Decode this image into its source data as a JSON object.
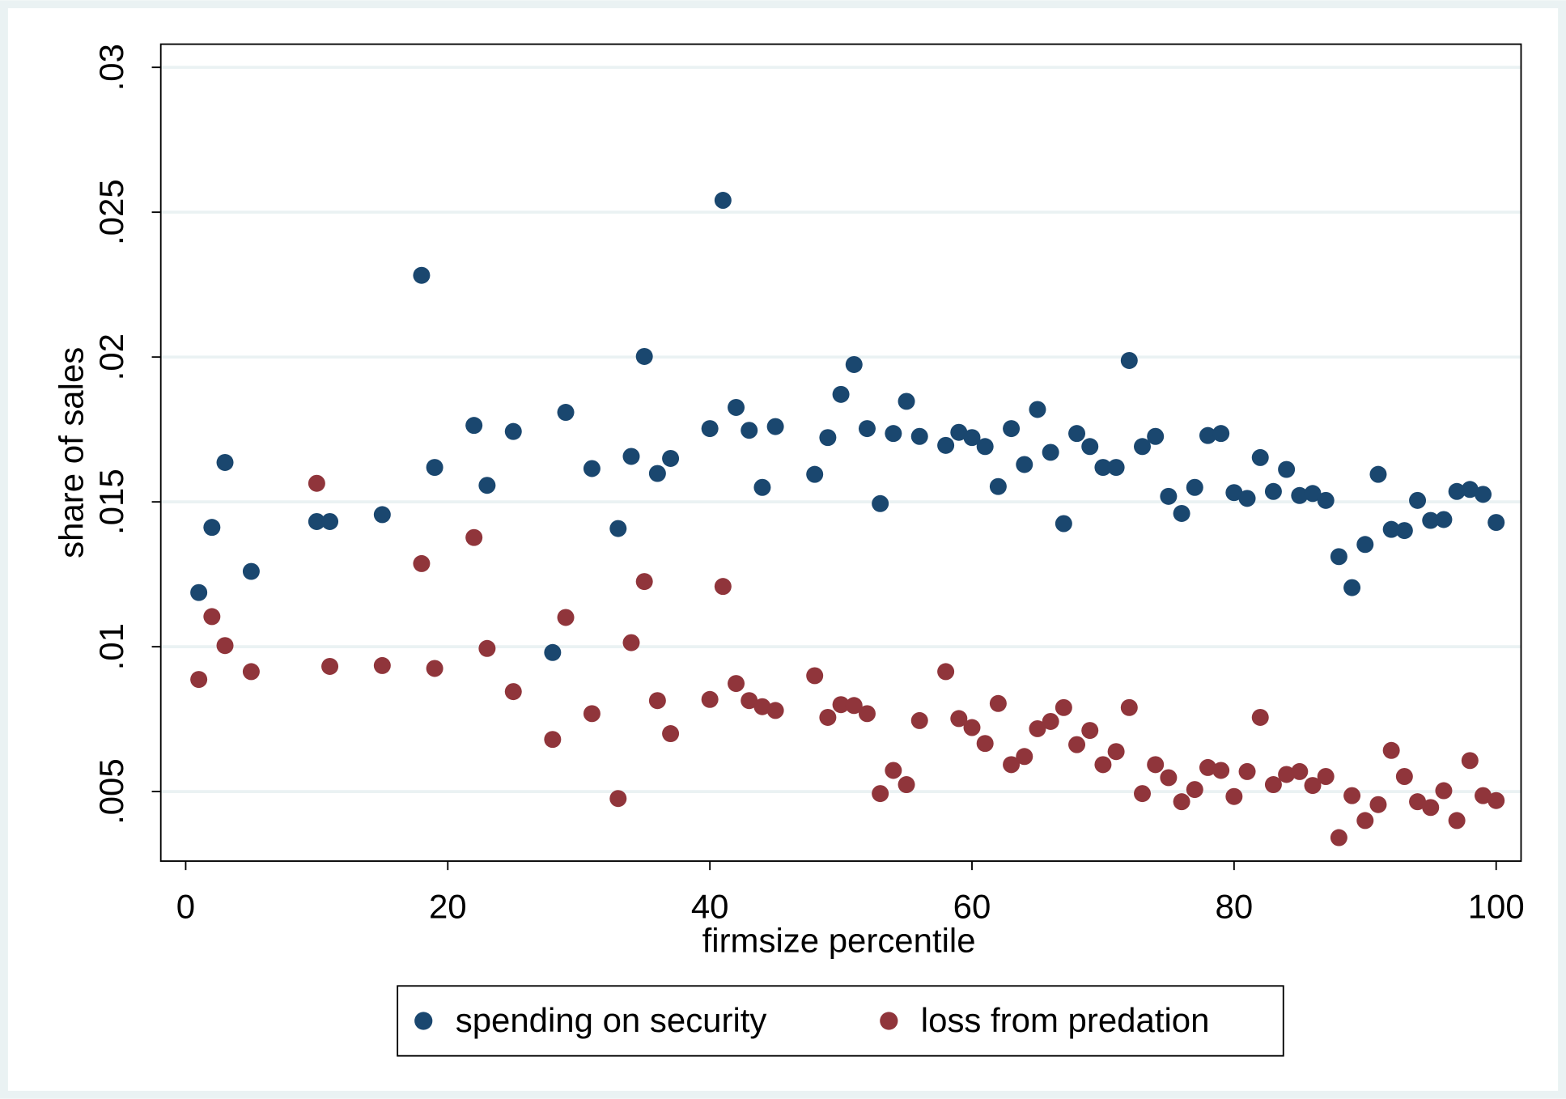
{
  "chart_data": {
    "type": "scatter",
    "x_label": "firmsize percentile",
    "y_label": "share of sales",
    "x": [
      1,
      2,
      3,
      5,
      10,
      11,
      15,
      18,
      19,
      22,
      23,
      25,
      28,
      29,
      31,
      33,
      34,
      35,
      36,
      37,
      40,
      41,
      42,
      43,
      44,
      45,
      48,
      49,
      50,
      51,
      52,
      53,
      54,
      55,
      56,
      58,
      59,
      60,
      61,
      62,
      63,
      64,
      65,
      66,
      67,
      68,
      69,
      70,
      71,
      72,
      73,
      74,
      75,
      76,
      77,
      78,
      79,
      80,
      81,
      82,
      83,
      84,
      85,
      86,
      87,
      88,
      89,
      90,
      91,
      92,
      93,
      94,
      95,
      96,
      97,
      98,
      99,
      100
    ],
    "series": [
      {
        "name": "spending on security",
        "color": "#1a476f",
        "values": [
          0.01187,
          0.01412,
          0.01636,
          0.0126,
          0.01432,
          0.01432,
          0.01456,
          0.02282,
          0.01619,
          0.01764,
          0.01557,
          0.01743,
          0.0098,
          0.01809,
          0.01615,
          0.01408,
          0.01657,
          0.02002,
          0.01598,
          0.0165,
          0.01753,
          0.02541,
          0.01826,
          0.01747,
          0.0155,
          0.0176,
          0.01595,
          0.01722,
          0.01871,
          0.01974,
          0.01753,
          0.01494,
          0.01736,
          0.01847,
          0.01726,
          0.01695,
          0.0174,
          0.01722,
          0.01691,
          0.01553,
          0.01753,
          0.01629,
          0.01819,
          0.01671,
          0.01425,
          0.01736,
          0.01691,
          0.01619,
          0.01619,
          0.01988,
          0.01691,
          0.01726,
          0.01519,
          0.0146,
          0.0155,
          0.01729,
          0.01736,
          0.01532,
          0.01512,
          0.01653,
          0.01536,
          0.01612,
          0.01522,
          0.01529,
          0.01505,
          0.01311,
          0.01204,
          0.01353,
          0.01595,
          0.01405,
          0.01401,
          0.01505,
          0.01436,
          0.01439,
          0.01536,
          0.01543,
          0.01526,
          0.01429
        ]
      },
      {
        "name": "loss from predation",
        "color": "#90353b",
        "values": [
          0.00887,
          0.01104,
          0.01004,
          0.00914,
          0.01564,
          0.00932,
          0.00935,
          0.01287,
          0.00925,
          0.01377,
          0.00994,
          0.00845,
          0.0068,
          0.01101,
          0.00769,
          0.00476,
          0.01014,
          0.01225,
          0.00814,
          0.007,
          0.00818,
          0.01208,
          0.00873,
          0.00814,
          0.00793,
          0.0078,
          0.009,
          0.00756,
          0.008,
          0.00797,
          0.00769,
          0.00493,
          0.00573,
          0.00524,
          0.00745,
          0.00914,
          0.00752,
          0.00721,
          0.00666,
          0.00804,
          0.00593,
          0.00621,
          0.00717,
          0.00742,
          0.0079,
          0.00662,
          0.00711,
          0.00593,
          0.00638,
          0.0079,
          0.00493,
          0.00593,
          0.00548,
          0.00465,
          0.00507,
          0.00583,
          0.00573,
          0.00483,
          0.00569,
          0.00756,
          0.00524,
          0.00559,
          0.00569,
          0.00521,
          0.00552,
          0.00341,
          0.00486,
          0.004,
          0.00455,
          0.00642,
          0.00552,
          0.00465,
          0.00445,
          0.00503,
          0.004,
          0.00607,
          0.00486,
          0.00469
        ]
      }
    ],
    "xlim": [
      -1.9,
      101.9
    ],
    "xticks": [
      0,
      20,
      40,
      60,
      80,
      100
    ],
    "ylim": [
      0.0026,
      0.0308
    ],
    "yticks": [
      {
        "value": 0.005,
        "label": ".005"
      },
      {
        "value": 0.01,
        "label": ".01"
      },
      {
        "value": 0.015,
        "label": ".015"
      },
      {
        "value": 0.02,
        "label": ".02"
      },
      {
        "value": 0.025,
        "label": ".025"
      },
      {
        "value": 0.03,
        "label": ".03"
      }
    ],
    "grid": true,
    "legend_position": "bottom"
  }
}
